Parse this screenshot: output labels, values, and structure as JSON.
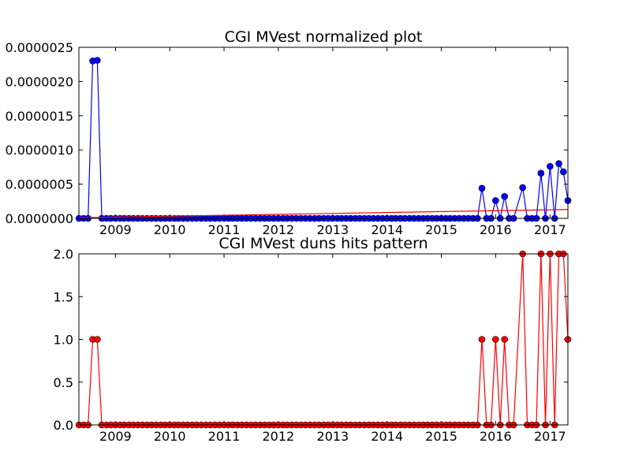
{
  "chart_data": [
    {
      "type": "line",
      "title": "CGI MVest normalized plot",
      "xlabel": "",
      "ylabel": "",
      "x_tick_labels": [
        "2009",
        "2010",
        "2011",
        "2012",
        "2013",
        "2014",
        "2015",
        "2016",
        "2017"
      ],
      "y_tick_labels": [
        "0.0000000",
        "0.0000005",
        "0.0000010",
        "0.0000015",
        "0.0000020",
        "0.0000025"
      ],
      "xlim": [
        "2008-04-30",
        "2017-05-01"
      ],
      "ylim": [
        0,
        2.5e-06
      ],
      "grid": false,
      "series": [
        {
          "color": "#0000ff",
          "marker": "circle",
          "points": [
            [
              "2008-05-01",
              0
            ],
            [
              "2008-06-01",
              0
            ],
            [
              "2008-07-01",
              0
            ],
            [
              "2008-08-01",
              2.3e-06
            ],
            [
              "2008-09-01",
              2.31e-06
            ],
            [
              "2008-10-01",
              0
            ],
            [
              "2008-11-01",
              0
            ],
            [
              "2008-12-01",
              0
            ],
            [
              "2009-01-01",
              0
            ],
            [
              "2009-02-01",
              0
            ],
            [
              "2009-03-01",
              0
            ],
            [
              "2009-04-01",
              0
            ],
            [
              "2009-05-01",
              0
            ],
            [
              "2009-06-01",
              0
            ],
            [
              "2009-07-01",
              0
            ],
            [
              "2009-08-01",
              0
            ],
            [
              "2009-09-01",
              0
            ],
            [
              "2009-10-01",
              0
            ],
            [
              "2009-11-01",
              0
            ],
            [
              "2009-12-01",
              0
            ],
            [
              "2010-01-01",
              0
            ],
            [
              "2010-02-01",
              0
            ],
            [
              "2010-03-01",
              0
            ],
            [
              "2010-04-01",
              0
            ],
            [
              "2010-05-01",
              0
            ],
            [
              "2010-06-01",
              0
            ],
            [
              "2010-07-01",
              0
            ],
            [
              "2010-08-01",
              0
            ],
            [
              "2010-09-01",
              0
            ],
            [
              "2010-10-01",
              0
            ],
            [
              "2010-11-01",
              0
            ],
            [
              "2010-12-01",
              0
            ],
            [
              "2011-01-01",
              0
            ],
            [
              "2011-02-01",
              0
            ],
            [
              "2011-03-01",
              0
            ],
            [
              "2011-04-01",
              0
            ],
            [
              "2011-05-01",
              0
            ],
            [
              "2011-06-01",
              0
            ],
            [
              "2011-07-01",
              0
            ],
            [
              "2011-08-01",
              0
            ],
            [
              "2011-09-01",
              0
            ],
            [
              "2011-10-01",
              0
            ],
            [
              "2011-11-01",
              0
            ],
            [
              "2011-12-01",
              0
            ],
            [
              "2012-01-01",
              0
            ],
            [
              "2012-02-01",
              0
            ],
            [
              "2012-03-01",
              0
            ],
            [
              "2012-04-01",
              0
            ],
            [
              "2012-05-01",
              0
            ],
            [
              "2012-06-01",
              0
            ],
            [
              "2012-07-01",
              0
            ],
            [
              "2012-08-01",
              0
            ],
            [
              "2012-09-01",
              0
            ],
            [
              "2012-10-01",
              0
            ],
            [
              "2012-11-01",
              0
            ],
            [
              "2012-12-01",
              0
            ],
            [
              "2013-01-01",
              0
            ],
            [
              "2013-02-01",
              0
            ],
            [
              "2013-03-01",
              0
            ],
            [
              "2013-04-01",
              0
            ],
            [
              "2013-05-01",
              0
            ],
            [
              "2013-06-01",
              0
            ],
            [
              "2013-07-01",
              0
            ],
            [
              "2013-08-01",
              0
            ],
            [
              "2013-09-01",
              0
            ],
            [
              "2013-10-01",
              0
            ],
            [
              "2013-11-01",
              0
            ],
            [
              "2013-12-01",
              0
            ],
            [
              "2014-01-01",
              0
            ],
            [
              "2014-02-01",
              0
            ],
            [
              "2014-03-01",
              0
            ],
            [
              "2014-04-01",
              0
            ],
            [
              "2014-05-01",
              0
            ],
            [
              "2014-06-01",
              0
            ],
            [
              "2014-07-01",
              0
            ],
            [
              "2014-08-01",
              0
            ],
            [
              "2014-09-01",
              0
            ],
            [
              "2014-10-01",
              0
            ],
            [
              "2014-11-01",
              0
            ],
            [
              "2014-12-01",
              0
            ],
            [
              "2015-01-01",
              0
            ],
            [
              "2015-02-01",
              0
            ],
            [
              "2015-03-01",
              0
            ],
            [
              "2015-04-01",
              0
            ],
            [
              "2015-05-01",
              0
            ],
            [
              "2015-06-01",
              0
            ],
            [
              "2015-07-01",
              0
            ],
            [
              "2015-08-01",
              0
            ],
            [
              "2015-09-01",
              0
            ],
            [
              "2015-10-01",
              4.4e-07
            ],
            [
              "2015-11-01",
              0
            ],
            [
              "2015-12-01",
              0
            ],
            [
              "2016-01-01",
              2.6e-07
            ],
            [
              "2016-02-01",
              0
            ],
            [
              "2016-03-01",
              3.2e-07
            ],
            [
              "2016-04-01",
              0
            ],
            [
              "2016-05-01",
              0
            ],
            [
              "2016-07-01",
              4.5e-07
            ],
            [
              "2016-08-01",
              0
            ],
            [
              "2016-09-01",
              0
            ],
            [
              "2016-10-01",
              0
            ],
            [
              "2016-11-01",
              6.6e-07
            ],
            [
              "2016-12-01",
              0
            ],
            [
              "2017-01-01",
              7.6e-07
            ],
            [
              "2017-02-01",
              0
            ],
            [
              "2017-03-01",
              8e-07
            ],
            [
              "2017-04-01",
              6.8e-07
            ],
            [
              "2017-05-01",
              2.6e-07
            ]
          ]
        },
        {
          "color": "#ff0000",
          "marker": "none",
          "points": [
            [
              "2008-05-01",
              1e-08
            ],
            [
              "2017-05-01",
              1.3e-07
            ]
          ]
        }
      ]
    },
    {
      "type": "line",
      "title": "CGI MVest duns hits pattern",
      "xlabel": "",
      "ylabel": "",
      "x_tick_labels": [
        "2009",
        "2010",
        "2011",
        "2012",
        "2013",
        "2014",
        "2015",
        "2016",
        "2017"
      ],
      "y_tick_labels": [
        "0.0",
        "0.5",
        "1.0",
        "1.5",
        "2.0"
      ],
      "xlim": [
        "2008-04-30",
        "2017-05-01"
      ],
      "ylim": [
        0,
        2
      ],
      "grid": false,
      "series": [
        {
          "color": "#ff0000",
          "marker": "circle",
          "points": [
            [
              "2008-05-01",
              0
            ],
            [
              "2008-06-01",
              0
            ],
            [
              "2008-07-01",
              0
            ],
            [
              "2008-08-01",
              1
            ],
            [
              "2008-09-01",
              1
            ],
            [
              "2008-10-01",
              0
            ],
            [
              "2008-11-01",
              0
            ],
            [
              "2008-12-01",
              0
            ],
            [
              "2009-01-01",
              0
            ],
            [
              "2009-02-01",
              0
            ],
            [
              "2009-03-01",
              0
            ],
            [
              "2009-04-01",
              0
            ],
            [
              "2009-05-01",
              0
            ],
            [
              "2009-06-01",
              0
            ],
            [
              "2009-07-01",
              0
            ],
            [
              "2009-08-01",
              0
            ],
            [
              "2009-09-01",
              0
            ],
            [
              "2009-10-01",
              0
            ],
            [
              "2009-11-01",
              0
            ],
            [
              "2009-12-01",
              0
            ],
            [
              "2010-01-01",
              0
            ],
            [
              "2010-02-01",
              0
            ],
            [
              "2010-03-01",
              0
            ],
            [
              "2010-04-01",
              0
            ],
            [
              "2010-05-01",
              0
            ],
            [
              "2010-06-01",
              0
            ],
            [
              "2010-07-01",
              0
            ],
            [
              "2010-08-01",
              0
            ],
            [
              "2010-09-01",
              0
            ],
            [
              "2010-10-01",
              0
            ],
            [
              "2010-11-01",
              0
            ],
            [
              "2010-12-01",
              0
            ],
            [
              "2011-01-01",
              0
            ],
            [
              "2011-02-01",
              0
            ],
            [
              "2011-03-01",
              0
            ],
            [
              "2011-04-01",
              0
            ],
            [
              "2011-05-01",
              0
            ],
            [
              "2011-06-01",
              0
            ],
            [
              "2011-07-01",
              0
            ],
            [
              "2011-08-01",
              0
            ],
            [
              "2011-09-01",
              0
            ],
            [
              "2011-10-01",
              0
            ],
            [
              "2011-11-01",
              0
            ],
            [
              "2011-12-01",
              0
            ],
            [
              "2012-01-01",
              0
            ],
            [
              "2012-02-01",
              0
            ],
            [
              "2012-03-01",
              0
            ],
            [
              "2012-04-01",
              0
            ],
            [
              "2012-05-01",
              0
            ],
            [
              "2012-06-01",
              0
            ],
            [
              "2012-07-01",
              0
            ],
            [
              "2012-08-01",
              0
            ],
            [
              "2012-09-01",
              0
            ],
            [
              "2012-10-01",
              0
            ],
            [
              "2012-11-01",
              0
            ],
            [
              "2012-12-01",
              0
            ],
            [
              "2013-01-01",
              0
            ],
            [
              "2013-02-01",
              0
            ],
            [
              "2013-03-01",
              0
            ],
            [
              "2013-04-01",
              0
            ],
            [
              "2013-05-01",
              0
            ],
            [
              "2013-06-01",
              0
            ],
            [
              "2013-07-01",
              0
            ],
            [
              "2013-08-01",
              0
            ],
            [
              "2013-09-01",
              0
            ],
            [
              "2013-10-01",
              0
            ],
            [
              "2013-11-01",
              0
            ],
            [
              "2013-12-01",
              0
            ],
            [
              "2014-01-01",
              0
            ],
            [
              "2014-02-01",
              0
            ],
            [
              "2014-03-01",
              0
            ],
            [
              "2014-04-01",
              0
            ],
            [
              "2014-05-01",
              0
            ],
            [
              "2014-06-01",
              0
            ],
            [
              "2014-07-01",
              0
            ],
            [
              "2014-08-01",
              0
            ],
            [
              "2014-09-01",
              0
            ],
            [
              "2014-10-01",
              0
            ],
            [
              "2014-11-01",
              0
            ],
            [
              "2014-12-01",
              0
            ],
            [
              "2015-01-01",
              0
            ],
            [
              "2015-02-01",
              0
            ],
            [
              "2015-03-01",
              0
            ],
            [
              "2015-04-01",
              0
            ],
            [
              "2015-05-01",
              0
            ],
            [
              "2015-06-01",
              0
            ],
            [
              "2015-07-01",
              0
            ],
            [
              "2015-08-01",
              0
            ],
            [
              "2015-09-01",
              0
            ],
            [
              "2015-10-01",
              1
            ],
            [
              "2015-11-01",
              0
            ],
            [
              "2015-12-01",
              0
            ],
            [
              "2016-01-01",
              1
            ],
            [
              "2016-02-01",
              0
            ],
            [
              "2016-03-01",
              1
            ],
            [
              "2016-04-01",
              0
            ],
            [
              "2016-05-01",
              0
            ],
            [
              "2016-07-01",
              2
            ],
            [
              "2016-08-01",
              0
            ],
            [
              "2016-09-01",
              0
            ],
            [
              "2016-10-01",
              0
            ],
            [
              "2016-11-01",
              2
            ],
            [
              "2016-12-01",
              0
            ],
            [
              "2017-01-01",
              2
            ],
            [
              "2017-02-01",
              0
            ],
            [
              "2017-03-01",
              2
            ],
            [
              "2017-04-01",
              2
            ],
            [
              "2017-05-01",
              1
            ]
          ]
        }
      ]
    }
  ]
}
